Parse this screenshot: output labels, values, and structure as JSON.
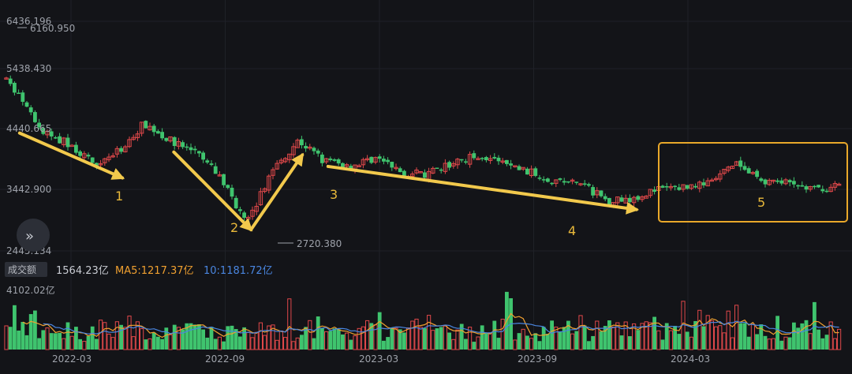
{
  "volume_bar": {
    "badge": "成交额",
    "current": "1564.23亿",
    "ma5": "MA5:1217.37亿",
    "ma10": "10:1181.72亿",
    "max_label": "4102.02亿"
  },
  "expand_icon": "double-chevron-right-icon",
  "colors": {
    "up": "#e0484a",
    "down": "#3fc46e",
    "arrow": "#f2c94c",
    "ma5": "#f0a030",
    "ma10": "#4a86e0",
    "box": "#e9a82a"
  },
  "chart_data": {
    "type": "candlestick",
    "y_ticks": [
      "6436.196",
      "5438.430",
      "4440.665",
      "3442.900",
      "2445.134"
    ],
    "ylim": [
      2445.134,
      6436.196
    ],
    "x_ticks": [
      "2022-03",
      "2022-09",
      "2023-03",
      "2023-09",
      "2024-03"
    ],
    "annotations": [
      {
        "text": "6160.950",
        "value": 6160.95,
        "date": "2021-12"
      },
      {
        "text": "2720.380",
        "value": 2720.38,
        "date": "2022-10"
      }
    ],
    "waves": [
      {
        "label": "1",
        "from": [
          "2022-01",
          4480
        ],
        "to": [
          "2022-05",
          3700
        ]
      },
      {
        "label": "2",
        "from": [
          "2022-07",
          4150
        ],
        "to": [
          "2022-10",
          2800
        ]
      },
      {
        "label": "3",
        "from": [
          "2022-10",
          2800
        ],
        "to": [
          "2022-12",
          4100
        ]
      },
      {
        "label": "4",
        "from": [
          "2023-01",
          3900
        ],
        "to": [
          "2024-01",
          3150
        ]
      },
      {
        "label": "5",
        "from": [
          "2024-01",
          4350
        ],
        "to": [
          "2024-12",
          3150
        ]
      }
    ],
    "price_path": [
      [
        "2021-11",
        6000
      ],
      [
        "2021-12",
        5700
      ],
      [
        "2022-01",
        5200
      ],
      [
        "2022-02",
        4500
      ],
      [
        "2022-03",
        4300
      ],
      [
        "2022-04",
        3950
      ],
      [
        "2022-05",
        4150
      ],
      [
        "2022-06",
        4650
      ],
      [
        "2022-07",
        4350
      ],
      [
        "2022-08",
        4150
      ],
      [
        "2022-09",
        3700
      ],
      [
        "2022-10",
        2900
      ],
      [
        "2022-11",
        3850
      ],
      [
        "2022-12",
        4350
      ],
      [
        "2023-01",
        4000
      ],
      [
        "2023-02",
        3900
      ],
      [
        "2023-03",
        4050
      ],
      [
        "2023-04",
        3800
      ],
      [
        "2023-05",
        3750
      ],
      [
        "2023-06",
        3950
      ],
      [
        "2023-07",
        4100
      ],
      [
        "2023-08",
        3950
      ],
      [
        "2023-09",
        3800
      ],
      [
        "2023-10",
        3650
      ],
      [
        "2023-11",
        3600
      ],
      [
        "2023-12",
        3300
      ],
      [
        "2024-01",
        3350
      ],
      [
        "2024-02",
        3500
      ],
      [
        "2024-03",
        3550
      ],
      [
        "2024-04",
        3600
      ],
      [
        "2024-05",
        3950
      ],
      [
        "2024-06",
        3650
      ],
      [
        "2024-07",
        3600
      ],
      [
        "2024-08",
        3500
      ],
      [
        "2024-09",
        3550
      ]
    ],
    "volume_ylim": [
      0,
      4102.02
    ],
    "volume_unit": "亿"
  }
}
